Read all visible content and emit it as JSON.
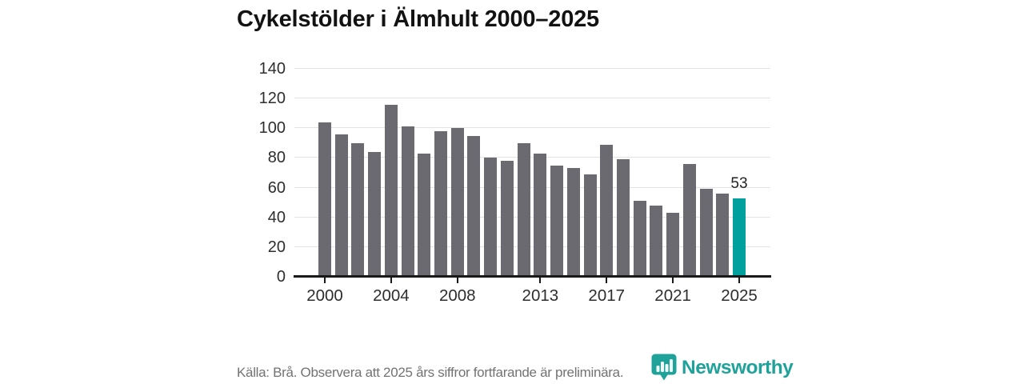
{
  "title": "Cykelstölder i Älmhult 2000–2025",
  "source_note": "Källa: Brå. Observera att 2025 års siffror fortfarande är preliminära.",
  "branding": {
    "name": "Newsworthy",
    "logo_icon": "bar-chart-pin-icon"
  },
  "colors": {
    "bar": "#6b6a71",
    "highlight": "#00a09e",
    "brand": "#1fa29a",
    "grid": "#e3e3e3",
    "axis": "#191919",
    "tick_text": "#2e2e2e",
    "title_text": "#121212",
    "muted_text": "#737373"
  },
  "chart_data": {
    "type": "bar",
    "title": "Cykelstölder i Älmhult 2000–2025",
    "categories": [
      "2000",
      "2001",
      "2002",
      "2003",
      "2004",
      "2005",
      "2006",
      "2007",
      "2008",
      "2009",
      "2010",
      "2011",
      "2012",
      "2013",
      "2014",
      "2015",
      "2016",
      "2017",
      "2018",
      "2019",
      "2020",
      "2021",
      "2022",
      "2023",
      "2024",
      "2025"
    ],
    "values": [
      104,
      96,
      90,
      84,
      116,
      101,
      83,
      98,
      100,
      95,
      80,
      78,
      90,
      83,
      75,
      73,
      69,
      89,
      79,
      51,
      48,
      43,
      76,
      59,
      56,
      53
    ],
    "highlight_index": 25,
    "highlight_label": "53",
    "x_tick_labels": [
      "2000",
      "2004",
      "2008",
      "2013",
      "2017",
      "2021",
      "2025"
    ],
    "x_tick_indices": [
      0,
      4,
      8,
      13,
      17,
      21,
      25
    ],
    "y_ticks": [
      0,
      20,
      40,
      60,
      80,
      100,
      120,
      140
    ],
    "ylim": [
      0,
      140
    ],
    "xlabel": "",
    "ylabel": "",
    "grid": true,
    "legend": false
  }
}
